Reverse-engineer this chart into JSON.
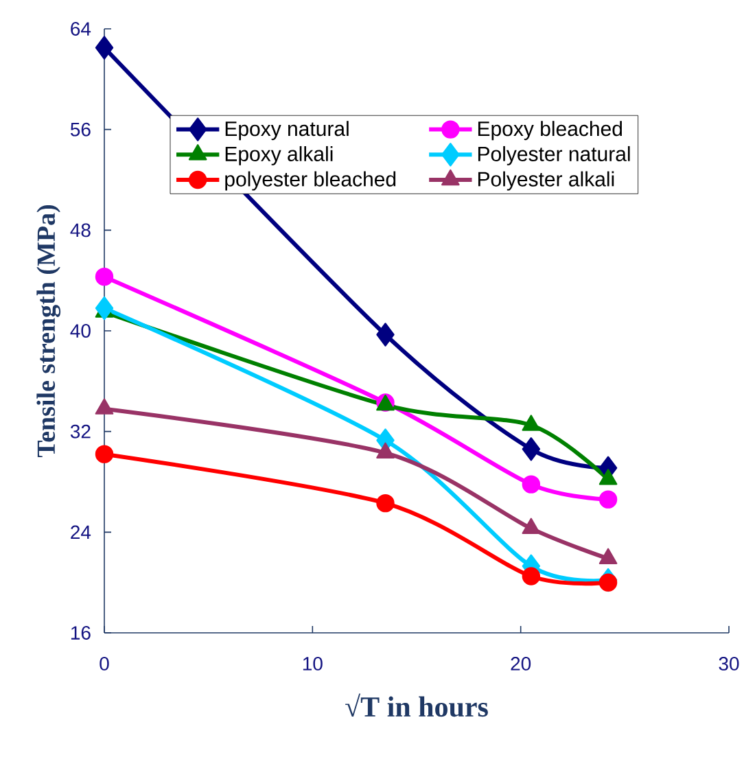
{
  "chart_data": {
    "type": "line",
    "xlabel": "√T in hours",
    "ylabel": "Tensile strength (MPa)",
    "x": [
      0,
      13.5,
      20.5,
      24.2
    ],
    "xlim": [
      0,
      30
    ],
    "xticks": [
      0,
      10,
      20,
      30
    ],
    "ylim": [
      16,
      64
    ],
    "yticks": [
      16,
      24,
      32,
      40,
      48,
      56,
      64
    ],
    "grid": false,
    "legend": "top",
    "series": [
      {
        "name": "Epoxy natural",
        "color": "#000080",
        "marker": "diamond",
        "values": [
          62.5,
          39.7,
          30.6,
          29.1
        ]
      },
      {
        "name": "Epoxy bleached",
        "color": "#ff00ff",
        "marker": "circle",
        "values": [
          44.3,
          34.3,
          27.8,
          26.6
        ]
      },
      {
        "name": "Epoxy alkali",
        "color": "#008000",
        "marker": "triangle",
        "values": [
          41.5,
          34.1,
          32.5,
          28.2
        ]
      },
      {
        "name": "Polyester natural",
        "color": "#00ccff",
        "marker": "diamond",
        "values": [
          41.8,
          31.3,
          21.3,
          20.2
        ]
      },
      {
        "name": "polyester bleached",
        "color": "#ff0000",
        "marker": "circle",
        "values": [
          30.2,
          26.3,
          20.5,
          20.0
        ]
      },
      {
        "name": "Polyester alkali",
        "color": "#993366",
        "marker": "triangle",
        "values": [
          33.8,
          30.3,
          24.3,
          21.9
        ]
      }
    ]
  }
}
